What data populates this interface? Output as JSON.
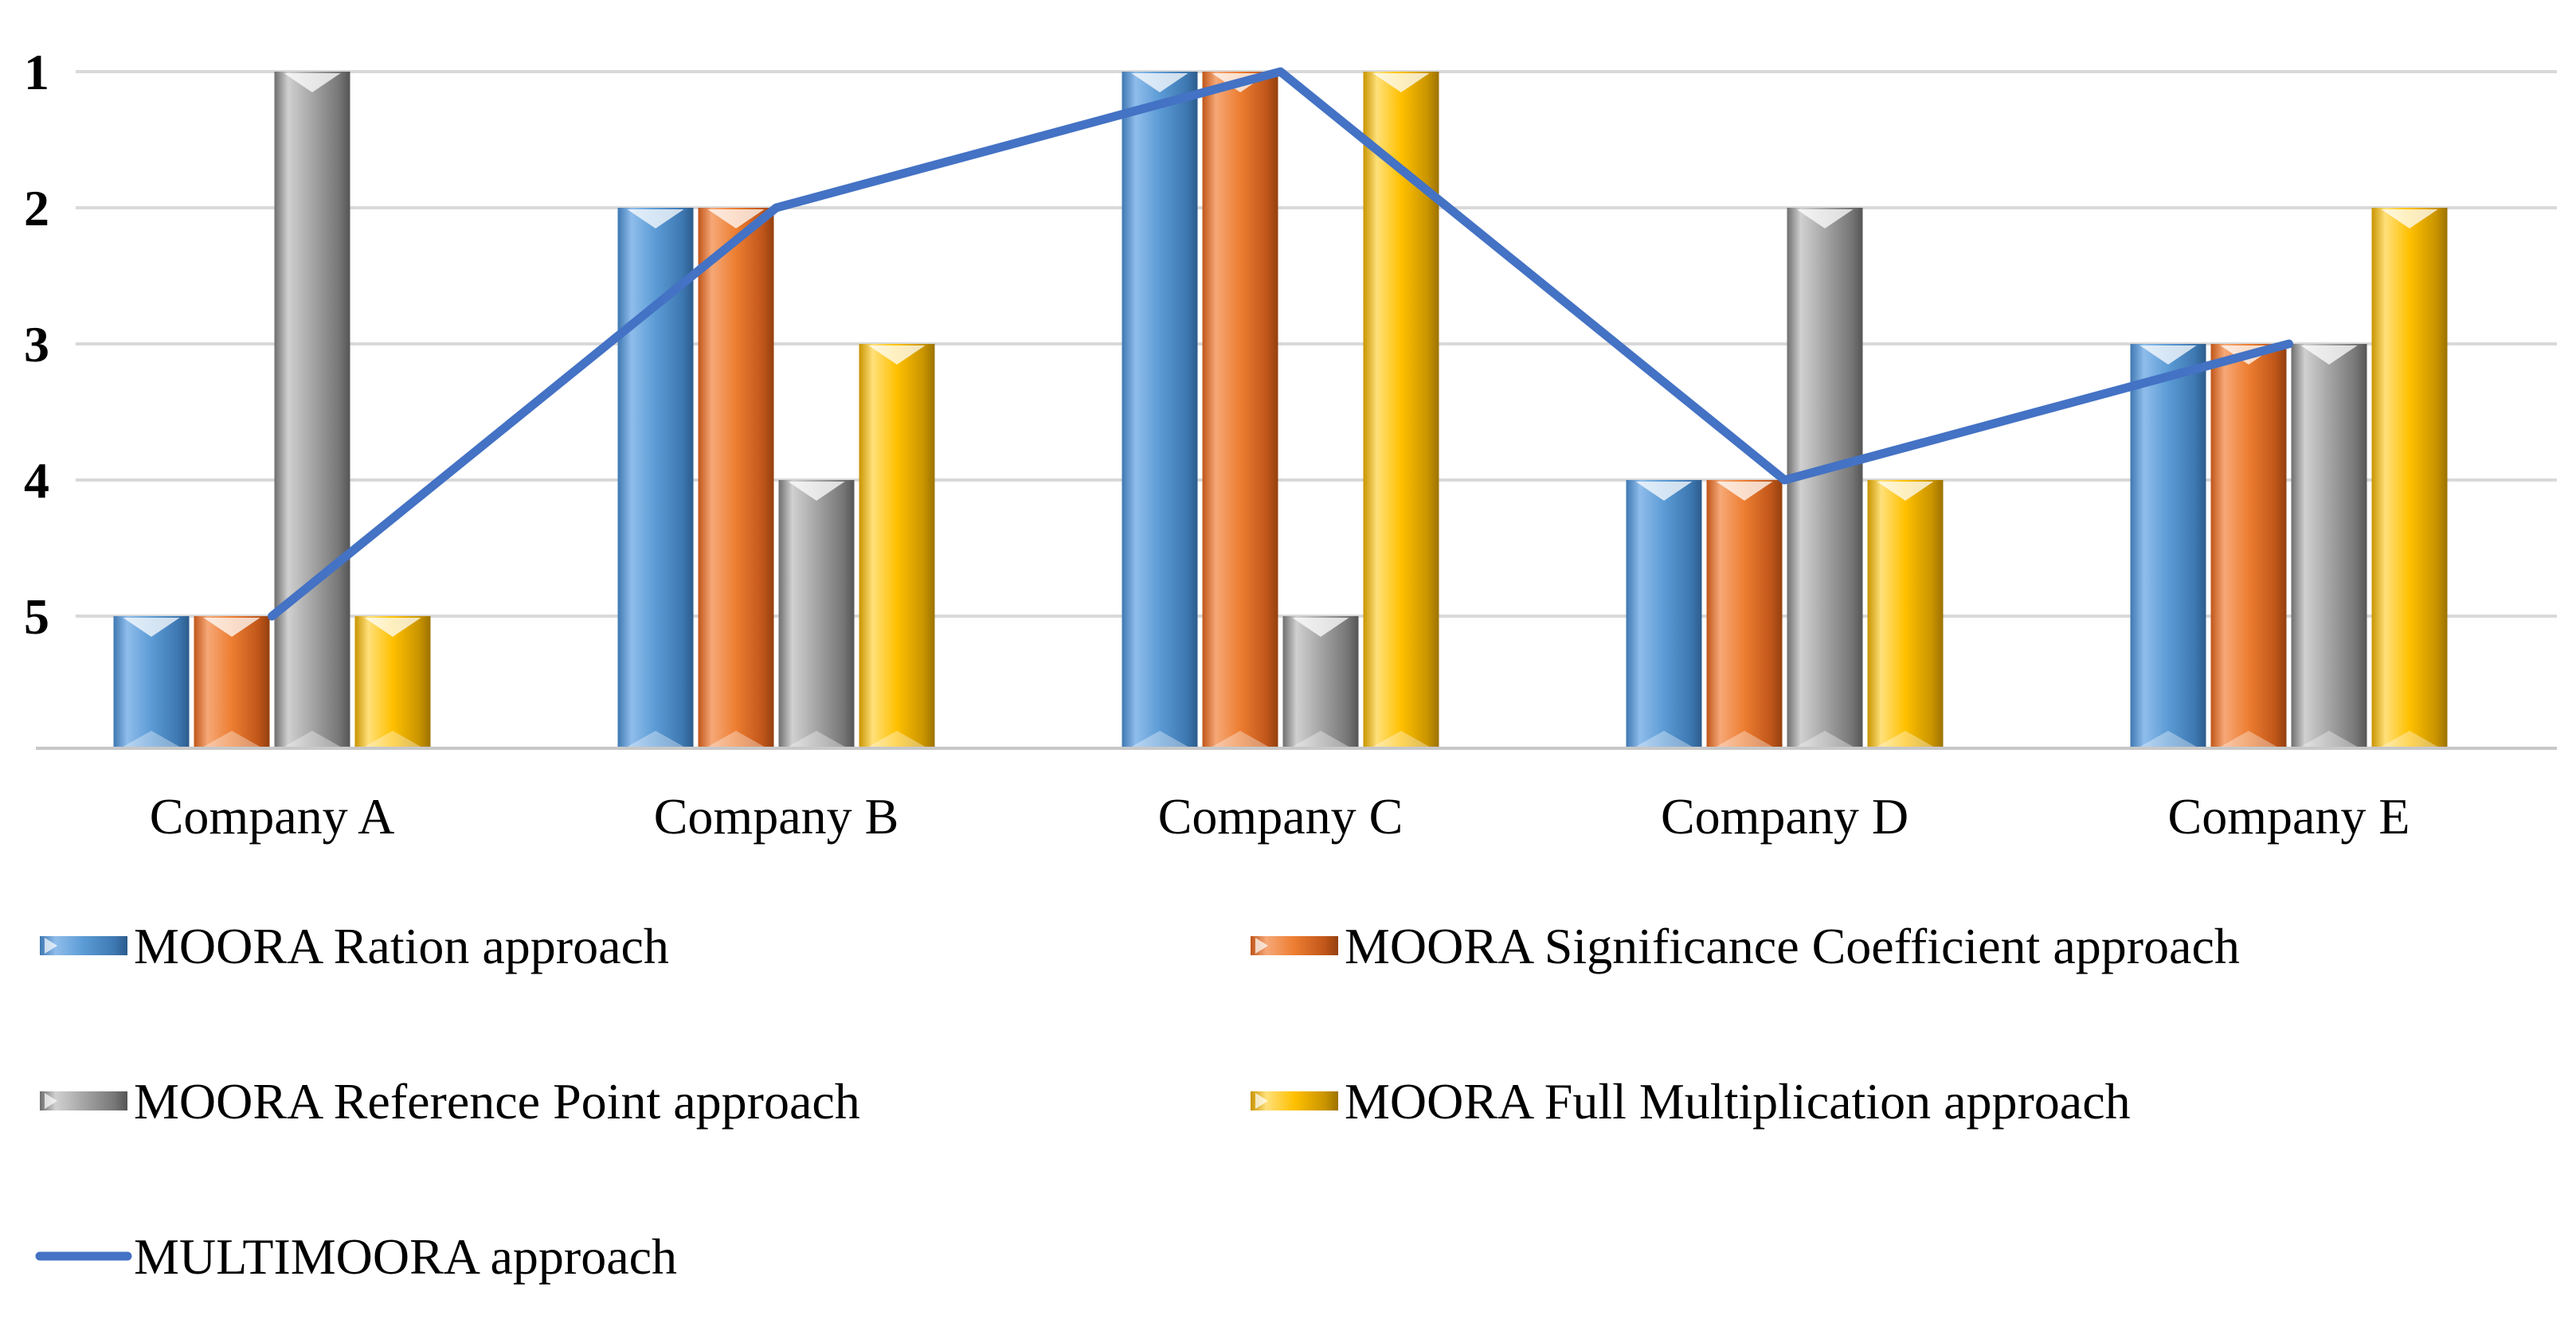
{
  "chart_data": {
    "type": "bar",
    "title": "",
    "xlabel": "",
    "ylabel": "",
    "y_axis": {
      "inverted": true,
      "ylim": [
        1,
        6
      ],
      "ticks": [
        1,
        2,
        3,
        4,
        5
      ]
    },
    "grid": true,
    "legend_position": "bottom",
    "categories": [
      "Company A",
      "Company B",
      "Company C",
      "Company D",
      "Company E"
    ],
    "series": [
      {
        "name": "MOORA Ration approach",
        "kind": "bar",
        "color": "#5B9BD5",
        "values": [
          5,
          2,
          1,
          4,
          3
        ]
      },
      {
        "name": "MOORA Significance Coefficient approach",
        "kind": "bar",
        "color": "#ED7D31",
        "values": [
          5,
          2,
          1,
          4,
          3
        ]
      },
      {
        "name": "MOORA Reference Point approach",
        "kind": "bar",
        "color": "#A5A5A5",
        "values": [
          1,
          4,
          5,
          2,
          3
        ]
      },
      {
        "name": "MOORA Full Multiplication approach",
        "kind": "bar",
        "color": "#FFC000",
        "values": [
          5,
          3,
          1,
          4,
          2
        ]
      },
      {
        "name": "MULTIMOORA approach",
        "kind": "line",
        "color": "#4472C4",
        "values": [
          5,
          2,
          1,
          4,
          3
        ]
      }
    ]
  }
}
